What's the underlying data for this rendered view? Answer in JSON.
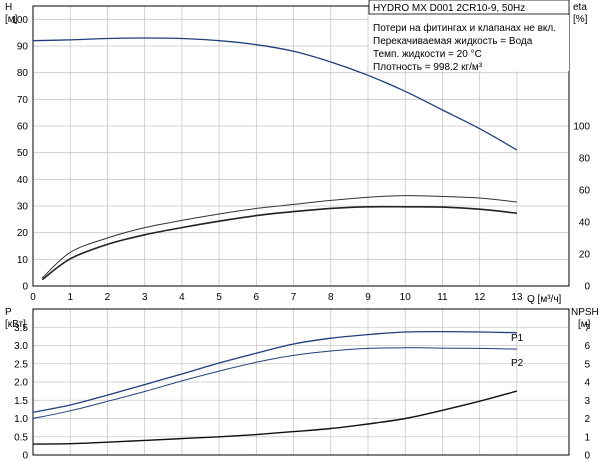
{
  "chart_data": [
    {
      "type": "line",
      "title": "HYDRO MX D001 2CR10-9, 50Hz",
      "notes": [
        "Потери на фитингах и клапанах не вкл.",
        "Перекачиваемая жидкость = Вода",
        "Темп. жидкости = 20 °C",
        "Плотность = 998.2 кг/м³"
      ],
      "left_axis": {
        "label_top": "H",
        "label_unit": "[м]",
        "range": [
          0,
          105
        ],
        "ticks": [
          0,
          10,
          20,
          30,
          40,
          50,
          60,
          70,
          80,
          90,
          100
        ]
      },
      "right_axis": {
        "label_top": "eta",
        "label_unit": "[%]",
        "range": [
          0,
          175
        ],
        "ticks": [
          0,
          20,
          40,
          60,
          80,
          100
        ]
      },
      "x_axis": {
        "label": "Q [м³/ч]",
        "range": [
          0,
          14.4
        ],
        "ticks": [
          0,
          1,
          2,
          3,
          4,
          5,
          6,
          7,
          8,
          9,
          10,
          11,
          12,
          13
        ]
      },
      "grid": true,
      "series": [
        {
          "axis": "left",
          "color": "#1f3f7a",
          "width": 1.3,
          "x": [
            0,
            1,
            2,
            3,
            4,
            5,
            6,
            7,
            8,
            9,
            10,
            11,
            12,
            13
          ],
          "y": [
            92,
            92.3,
            92.8,
            93,
            92.8,
            92,
            90.5,
            88,
            84,
            79,
            73,
            66,
            59,
            51
          ]
        },
        {
          "axis": "right",
          "color": "#333333",
          "width": 1,
          "x": [
            0.25,
            1,
            2,
            3,
            4,
            5,
            6,
            7,
            8,
            9,
            10,
            11,
            12,
            13
          ],
          "y": [
            5,
            21,
            30,
            36.5,
            41,
            45,
            48.5,
            51,
            53.5,
            55.5,
            56.5,
            56,
            55,
            52.5
          ]
        },
        {
          "axis": "right",
          "color": "#222222",
          "width": 1.6,
          "x": [
            0.25,
            1,
            2,
            3,
            4,
            5,
            6,
            7,
            8,
            9,
            10,
            11,
            12,
            13
          ],
          "y": [
            4,
            17,
            26,
            32,
            36.5,
            40.5,
            44,
            46.5,
            48.5,
            49.5,
            49.5,
            49.3,
            48,
            45.5
          ]
        }
      ]
    },
    {
      "type": "line",
      "left_axis": {
        "label_top": "P",
        "label_unit": "[кВт]",
        "range": [
          0,
          4.0
        ],
        "ticks": [
          0,
          0.5,
          1.0,
          1.5,
          2.0,
          2.5,
          3.0,
          3.5
        ]
      },
      "left_tick_labels": [
        "0",
        "0.5",
        "1.0",
        "1.5",
        "2.0",
        "2.5",
        "3.0",
        "3.5"
      ],
      "right_axis": {
        "label_top": "NPSH",
        "label_unit": "[м]",
        "range": [
          0,
          8
        ],
        "ticks": [
          0,
          1,
          2,
          3,
          4,
          5,
          6,
          7
        ]
      },
      "x_axis": {
        "range": [
          0,
          14.4
        ],
        "ticks": [
          0,
          1,
          2,
          3,
          4,
          5,
          6,
          7,
          8,
          9,
          10,
          11,
          12,
          13
        ]
      },
      "grid": true,
      "series": [
        {
          "name": "P1",
          "axis": "left",
          "color": "#1f3f7a",
          "width": 1.3,
          "x": [
            0,
            1,
            2,
            3,
            4,
            5,
            6,
            7,
            8,
            9,
            10,
            11,
            12,
            13
          ],
          "y": [
            1.17,
            1.37,
            1.64,
            1.93,
            2.22,
            2.52,
            2.79,
            3.04,
            3.2,
            3.3,
            3.37,
            3.38,
            3.37,
            3.35
          ]
        },
        {
          "name": "P2",
          "axis": "left",
          "color": "#1f3f7a",
          "width": 1,
          "x": [
            0,
            1,
            2,
            3,
            4,
            5,
            6,
            7,
            8,
            9,
            10,
            11,
            12,
            13
          ],
          "y": [
            1.0,
            1.21,
            1.47,
            1.74,
            2.03,
            2.3,
            2.54,
            2.73,
            2.85,
            2.92,
            2.94,
            2.93,
            2.92,
            2.9
          ]
        },
        {
          "axis": "right",
          "color": "#111111",
          "width": 1.4,
          "x": [
            0,
            1,
            2,
            3,
            4,
            5,
            6,
            7,
            8,
            9,
            10,
            11,
            12,
            13
          ],
          "y": [
            0.6,
            0.62,
            0.7,
            0.8,
            0.9,
            1.0,
            1.12,
            1.28,
            1.45,
            1.7,
            2.0,
            2.45,
            2.95,
            3.5
          ]
        }
      ]
    }
  ]
}
